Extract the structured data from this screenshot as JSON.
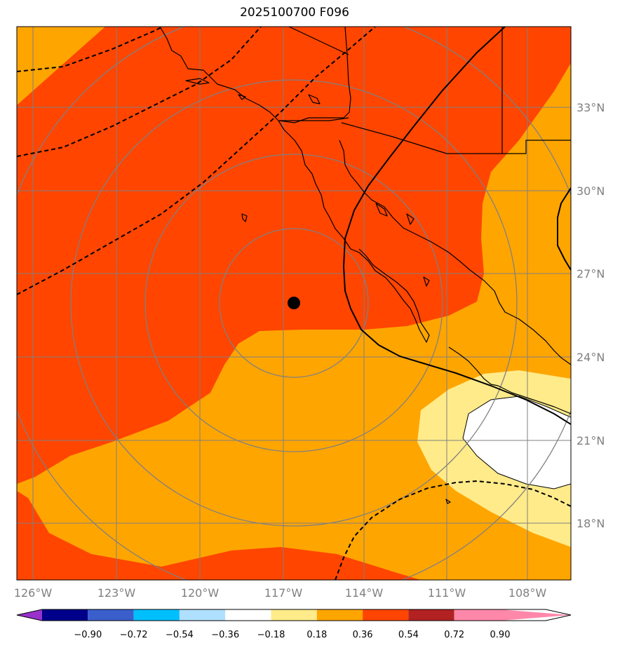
{
  "title": "2025100700 F096",
  "longitude_labels": [
    "126°W",
    "123°W",
    "120°W",
    "117°W",
    "114°W",
    "111°W",
    "108°W"
  ],
  "latitude_labels": [
    "33°N",
    "30°N",
    "27°N",
    "24°N",
    "21°N",
    "18°N"
  ],
  "colorbar": {
    "tick_labels": [
      "−0.90",
      "−0.72",
      "−0.54",
      "−0.36",
      "−0.18",
      "0.18",
      "0.36",
      "0.54",
      "0.72",
      "0.90"
    ],
    "colors": [
      "#9932cc",
      "#00008b",
      "#3a5fcd",
      "#00bfff",
      "#b0e0ff",
      "#ffffff",
      "#ffeb8a",
      "#ffa500",
      "#ff4500",
      "#b22222",
      "#ff88aa"
    ]
  },
  "fill_colors": {
    "red_orange": "#ff4500",
    "orange": "#ffa500",
    "light_yellow": "#ffeb8a",
    "white": "#ffffff"
  },
  "storm_center": {
    "lon": -116.6,
    "lat": 25.8
  }
}
